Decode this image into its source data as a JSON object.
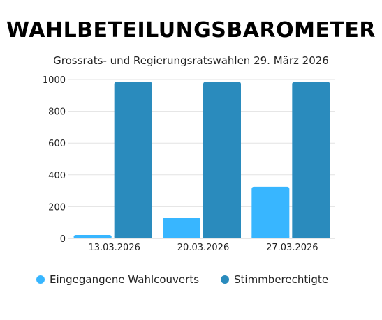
{
  "chart_data": {
    "type": "bar",
    "title": "WAHLBETEILUNGSBAROMETER",
    "subtitle": "Grossrats- und Regierungsratswahlen 29. März 2026",
    "categories": [
      "13.03.2026",
      "20.03.2026",
      "27.03.2026"
    ],
    "series": [
      {
        "name": "Eingegangene Wahlcouverts",
        "values": [
          22,
          130,
          325
        ],
        "color": "#38b6ff"
      },
      {
        "name": "Stimmberechtigte",
        "values": [
          985,
          985,
          985
        ],
        "color": "#2a8bbd"
      }
    ],
    "ylim": [
      0,
      1000
    ],
    "yticks": [
      "0",
      "200",
      "400",
      "600",
      "800",
      "1000"
    ],
    "grid": true,
    "legend_position": "bottom"
  }
}
